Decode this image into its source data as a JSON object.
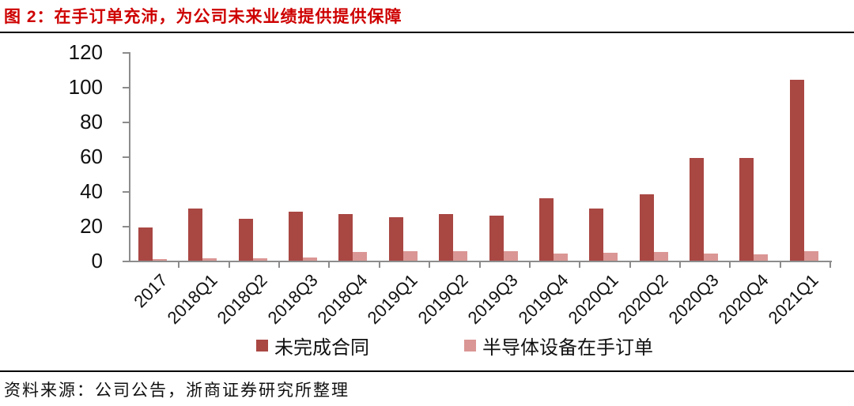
{
  "figure": {
    "title": "图 2：在手订单充沛，为公司未来业绩提供提供保障",
    "source": "资料来源：公司公告，浙商证券研究所整理"
  },
  "colors": {
    "title_red": "#ce0000",
    "series1": "#a94743",
    "series2": "#da9694",
    "axis_gray": "#8c8c8c",
    "rule_black": "#000000",
    "text_black": "#111111"
  },
  "chart_data": {
    "type": "bar",
    "title": "在手订单充沛，为公司未来业绩提供提供保障",
    "categories": [
      "2017",
      "2018Q1",
      "2018Q2",
      "2018Q3",
      "2018Q4",
      "2019Q1",
      "2019Q2",
      "2019Q3",
      "2019Q4",
      "2020Q1",
      "2020Q2",
      "2020Q3",
      "2020Q4",
      "2021Q1"
    ],
    "series": [
      {
        "name": "未完成合同",
        "color": "#a94743",
        "values": [
          19,
          30,
          24,
          28,
          27,
          25,
          27,
          26,
          36,
          30,
          38,
          59,
          59,
          104
        ]
      },
      {
        "name": "半导体设备在手订单",
        "color": "#da9694",
        "values": [
          1,
          1.5,
          1.5,
          2,
          5,
          5.5,
          5.5,
          5.5,
          4,
          4.5,
          5,
          4,
          3.5,
          5.5
        ]
      }
    ],
    "xlabel": "",
    "ylabel": "",
    "ylim": [
      0,
      120
    ],
    "yticks": [
      0,
      20,
      40,
      60,
      80,
      100,
      120
    ],
    "grid": false,
    "legend_position": "bottom"
  }
}
